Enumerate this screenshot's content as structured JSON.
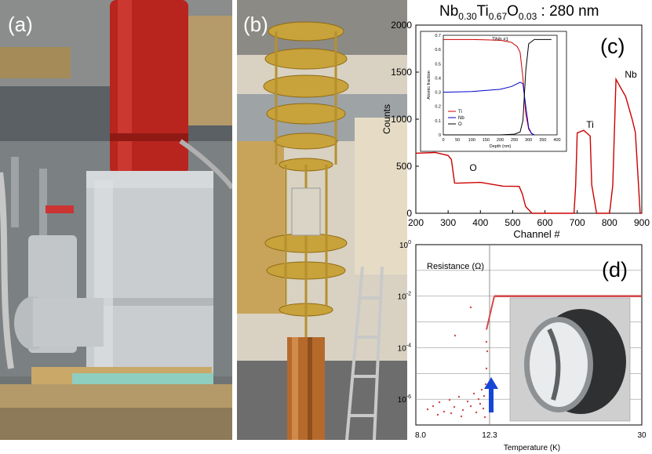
{
  "figure": {
    "panel_a_label": "(a)",
    "panel_b_label": "(b)",
    "panel_c_label": "(c)",
    "panel_d_label": "(d)"
  },
  "colors": {
    "red_tank": "#b8251e",
    "grey_vessel": "#c9cdd0",
    "gold_insert": "#c8a23a",
    "copper_cavity": "#b56a2c",
    "spectrum_line": "#cc0000",
    "resistance_points": "#d24a4a",
    "arrow": "#1646d6"
  },
  "chart_data": [
    {
      "type": "line",
      "title_parts": [
        "Nb",
        "0.30",
        "Ti",
        "0.67",
        "O",
        "0.03",
        " : 280 nm"
      ],
      "xlabel": "Channel #",
      "ylabel": "Counts",
      "xlim": [
        200,
        900
      ],
      "ylim": [
        0,
        2000
      ],
      "xticks": [
        200,
        300,
        400,
        500,
        600,
        700,
        800,
        900
      ],
      "yticks": [
        0,
        500,
        1000,
        1500,
        2000
      ],
      "annotations": [
        "O",
        "Ti",
        "Nb"
      ],
      "series": [
        {
          "values_x": [
            200,
            260,
            300,
            310,
            320,
            330,
            400,
            470,
            520,
            530,
            540,
            560,
            600,
            650,
            690,
            695,
            700,
            720,
            740,
            745,
            760,
            800,
            810,
            820,
            830,
            850,
            870,
            880,
            890,
            895,
            900
          ],
          "values_y": [
            650,
            650,
            610,
            560,
            330,
            320,
            320,
            300,
            290,
            200,
            60,
            0,
            0,
            0,
            0,
            300,
            850,
            870,
            830,
            300,
            0,
            0,
            300,
            1420,
            1350,
            1250,
            1000,
            850,
            300,
            0,
            0
          ]
        }
      ],
      "inset": {
        "title": "TiNb #1",
        "xlabel": "Depth (nm)",
        "ylabel": "Atomic fraction",
        "xlim": [
          0,
          400
        ],
        "ylim": [
          0,
          0.7
        ],
        "xticks": [
          0,
          50,
          100,
          150,
          200,
          250,
          300,
          350,
          400
        ],
        "yticks": [
          0,
          0.1,
          0.2,
          0.3,
          0.4,
          0.5,
          0.6,
          0.7
        ],
        "legend": [
          "Ti",
          "Nb",
          "O"
        ],
        "legend_colors": [
          "#cc0000",
          "#0000cc",
          "#000000"
        ],
        "series": [
          {
            "name": "Ti",
            "x": [
              0,
              100,
              200,
              240,
              260,
              270,
              280,
              290,
              300,
              310,
              320
            ],
            "y": [
              0.67,
              0.67,
              0.665,
              0.65,
              0.62,
              0.58,
              0.4,
              0.15,
              0.04,
              0.01,
              0
            ]
          },
          {
            "name": "Nb",
            "x": [
              0,
              100,
              200,
              240,
              260,
              270,
              280,
              290,
              300,
              310,
              320
            ],
            "y": [
              0.3,
              0.305,
              0.32,
              0.34,
              0.36,
              0.37,
              0.36,
              0.2,
              0.05,
              0.01,
              0
            ]
          },
          {
            "name": "O",
            "x": [
              0,
              100,
              200,
              250,
              270,
              280,
              290,
              300,
              320,
              350,
              380
            ],
            "y": [
              0,
              0,
              0,
              0.005,
              0.02,
              0.1,
              0.45,
              0.64,
              0.67,
              0.67,
              0.67
            ]
          }
        ]
      }
    },
    {
      "type": "scatter",
      "ylabel": "Resistance (Ω)",
      "xlabel": "Temperature (K)",
      "xticks": [
        "8.0",
        "12.3",
        "30"
      ],
      "ytick_exponents": [
        "0",
        "-2",
        "-4",
        "-6"
      ],
      "ytick_base": "10",
      "xlim": [
        8,
        30
      ],
      "log_y": true,
      "ylim_exp": [
        -7,
        0
      ],
      "transition_T": 12.3,
      "plateau_exp": -2
    }
  ]
}
